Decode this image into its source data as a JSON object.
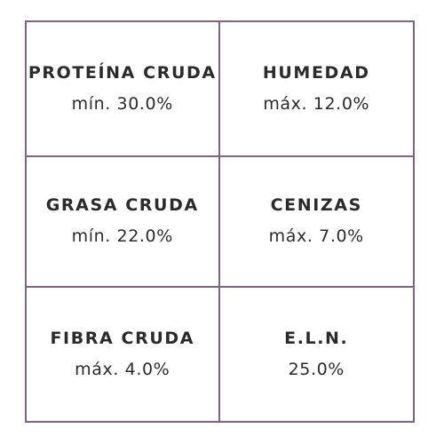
{
  "colors": {
    "border": "#7b6580",
    "text": "#2b2b2b",
    "background": "#ffffff"
  },
  "nutrients": [
    {
      "label": "PROTEÍNA CRUDA",
      "value": "mín. 30.0%"
    },
    {
      "label": "HUMEDAD",
      "value": "máx. 12.0%"
    },
    {
      "label": "GRASA CRUDA",
      "value": "mín. 22.0%"
    },
    {
      "label": "CENIZAS",
      "value": "máx. 7.0%"
    },
    {
      "label": "FIBRA CRUDA",
      "value": "máx. 4.0%"
    },
    {
      "label": "E.L.N.",
      "value": "25.0%"
    }
  ]
}
